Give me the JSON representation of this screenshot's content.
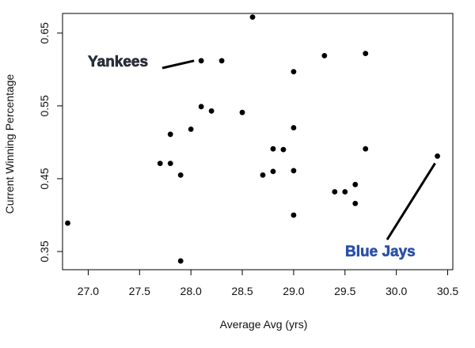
{
  "chart_data": {
    "type": "scatter",
    "xlabel": "Average Avg (yrs)",
    "ylabel": "Current Winning Percentage",
    "xlim": [
      26.75,
      30.55
    ],
    "ylim": [
      0.325,
      0.677
    ],
    "x_ticks": [
      "27.0",
      "27.5",
      "28.0",
      "28.5",
      "29.0",
      "29.5",
      "30.0",
      "30.5"
    ],
    "y_ticks": [
      "0.35",
      "0.45",
      "0.55",
      "0.65"
    ],
    "grid": false,
    "point_color": "#000000",
    "points": [
      {
        "x": 26.8,
        "y": 0.389
      },
      {
        "x": 27.7,
        "y": 0.471
      },
      {
        "x": 27.8,
        "y": 0.471
      },
      {
        "x": 27.8,
        "y": 0.511
      },
      {
        "x": 27.9,
        "y": 0.455
      },
      {
        "x": 27.9,
        "y": 0.337
      },
      {
        "x": 28.0,
        "y": 0.518
      },
      {
        "x": 28.1,
        "y": 0.612
      },
      {
        "x": 28.1,
        "y": 0.549
      },
      {
        "x": 28.2,
        "y": 0.543
      },
      {
        "x": 28.3,
        "y": 0.612
      },
      {
        "x": 28.5,
        "y": 0.541
      },
      {
        "x": 28.6,
        "y": 0.672
      },
      {
        "x": 28.7,
        "y": 0.455
      },
      {
        "x": 28.8,
        "y": 0.491
      },
      {
        "x": 28.8,
        "y": 0.46
      },
      {
        "x": 28.9,
        "y": 0.49
      },
      {
        "x": 29.0,
        "y": 0.597
      },
      {
        "x": 29.0,
        "y": 0.52
      },
      {
        "x": 29.0,
        "y": 0.461
      },
      {
        "x": 29.0,
        "y": 0.4
      },
      {
        "x": 29.3,
        "y": 0.619
      },
      {
        "x": 29.4,
        "y": 0.432
      },
      {
        "x": 29.5,
        "y": 0.432
      },
      {
        "x": 29.6,
        "y": 0.442
      },
      {
        "x": 29.6,
        "y": 0.416
      },
      {
        "x": 29.7,
        "y": 0.622
      },
      {
        "x": 29.7,
        "y": 0.491
      },
      {
        "x": 30.4,
        "y": 0.481
      }
    ],
    "annotations": [
      {
        "text": "Yankees",
        "color": "#2a3448",
        "target": {
          "x": 28.1,
          "y": 0.612
        }
      },
      {
        "text": "Blue Jays",
        "color": "#2b4fa8",
        "target": {
          "x": 30.4,
          "y": 0.481
        }
      }
    ]
  }
}
